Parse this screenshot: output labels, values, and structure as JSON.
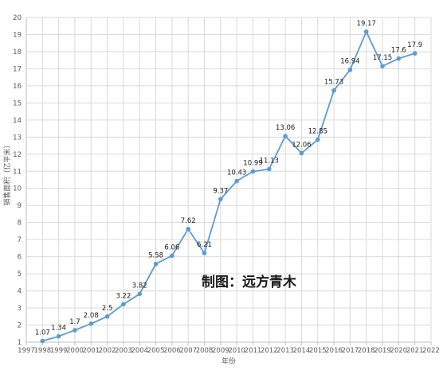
{
  "chart_data": {
    "type": "line",
    "title": "",
    "xlabel": "年份",
    "ylabel": "销售面积（亿平米）",
    "watermark": "制图：远方青木",
    "xlim": [
      1997,
      2022
    ],
    "ylim": [
      1,
      20
    ],
    "x_ticks": [
      "1997",
      "1998",
      "1999",
      "2000",
      "2001",
      "2002",
      "2003",
      "2004",
      "2005",
      "2006",
      "2007",
      "2008",
      "2009",
      "2010",
      "2011",
      "2012",
      "2013",
      "2014",
      "2015",
      "2016",
      "2017",
      "2018",
      "2019",
      "2020",
      "2021",
      "2022"
    ],
    "y_ticks": [
      "1",
      "2",
      "3",
      "4",
      "5",
      "6",
      "7",
      "8",
      "9",
      "10",
      "11",
      "12",
      "13",
      "14",
      "15",
      "16",
      "17",
      "18",
      "19",
      "20"
    ],
    "grid": true,
    "legend": "none",
    "line_color": "#5b9bd5",
    "series": [
      {
        "x": [
          1998,
          1999,
          2000,
          2001,
          2002,
          2003,
          2004,
          2005,
          2006,
          2007,
          2008,
          2009,
          2010,
          2011,
          2012,
          2013,
          2014,
          2015,
          2016,
          2017,
          2018,
          2019,
          2020,
          2021
        ],
        "values": [
          1.07,
          1.34,
          1.7,
          2.08,
          2.5,
          3.22,
          3.82,
          5.58,
          6.06,
          7.62,
          6.21,
          9.37,
          10.43,
          10.99,
          11.13,
          13.06,
          12.06,
          12.85,
          15.73,
          16.94,
          19.17,
          17.15,
          17.6,
          17.9
        ],
        "labels": [
          "1.07",
          "1.34",
          "1.7",
          "2.08",
          "2.5",
          "3.22",
          "3.82",
          "5.58",
          "6.06",
          "7.62",
          "6.21",
          "9.37",
          "10.43",
          "10.99",
          "11.13",
          "13.06",
          "12.06",
          "12.85",
          "15.73",
          "16.94",
          "19.17",
          "17.15",
          "17.6",
          "17.9"
        ]
      }
    ]
  }
}
